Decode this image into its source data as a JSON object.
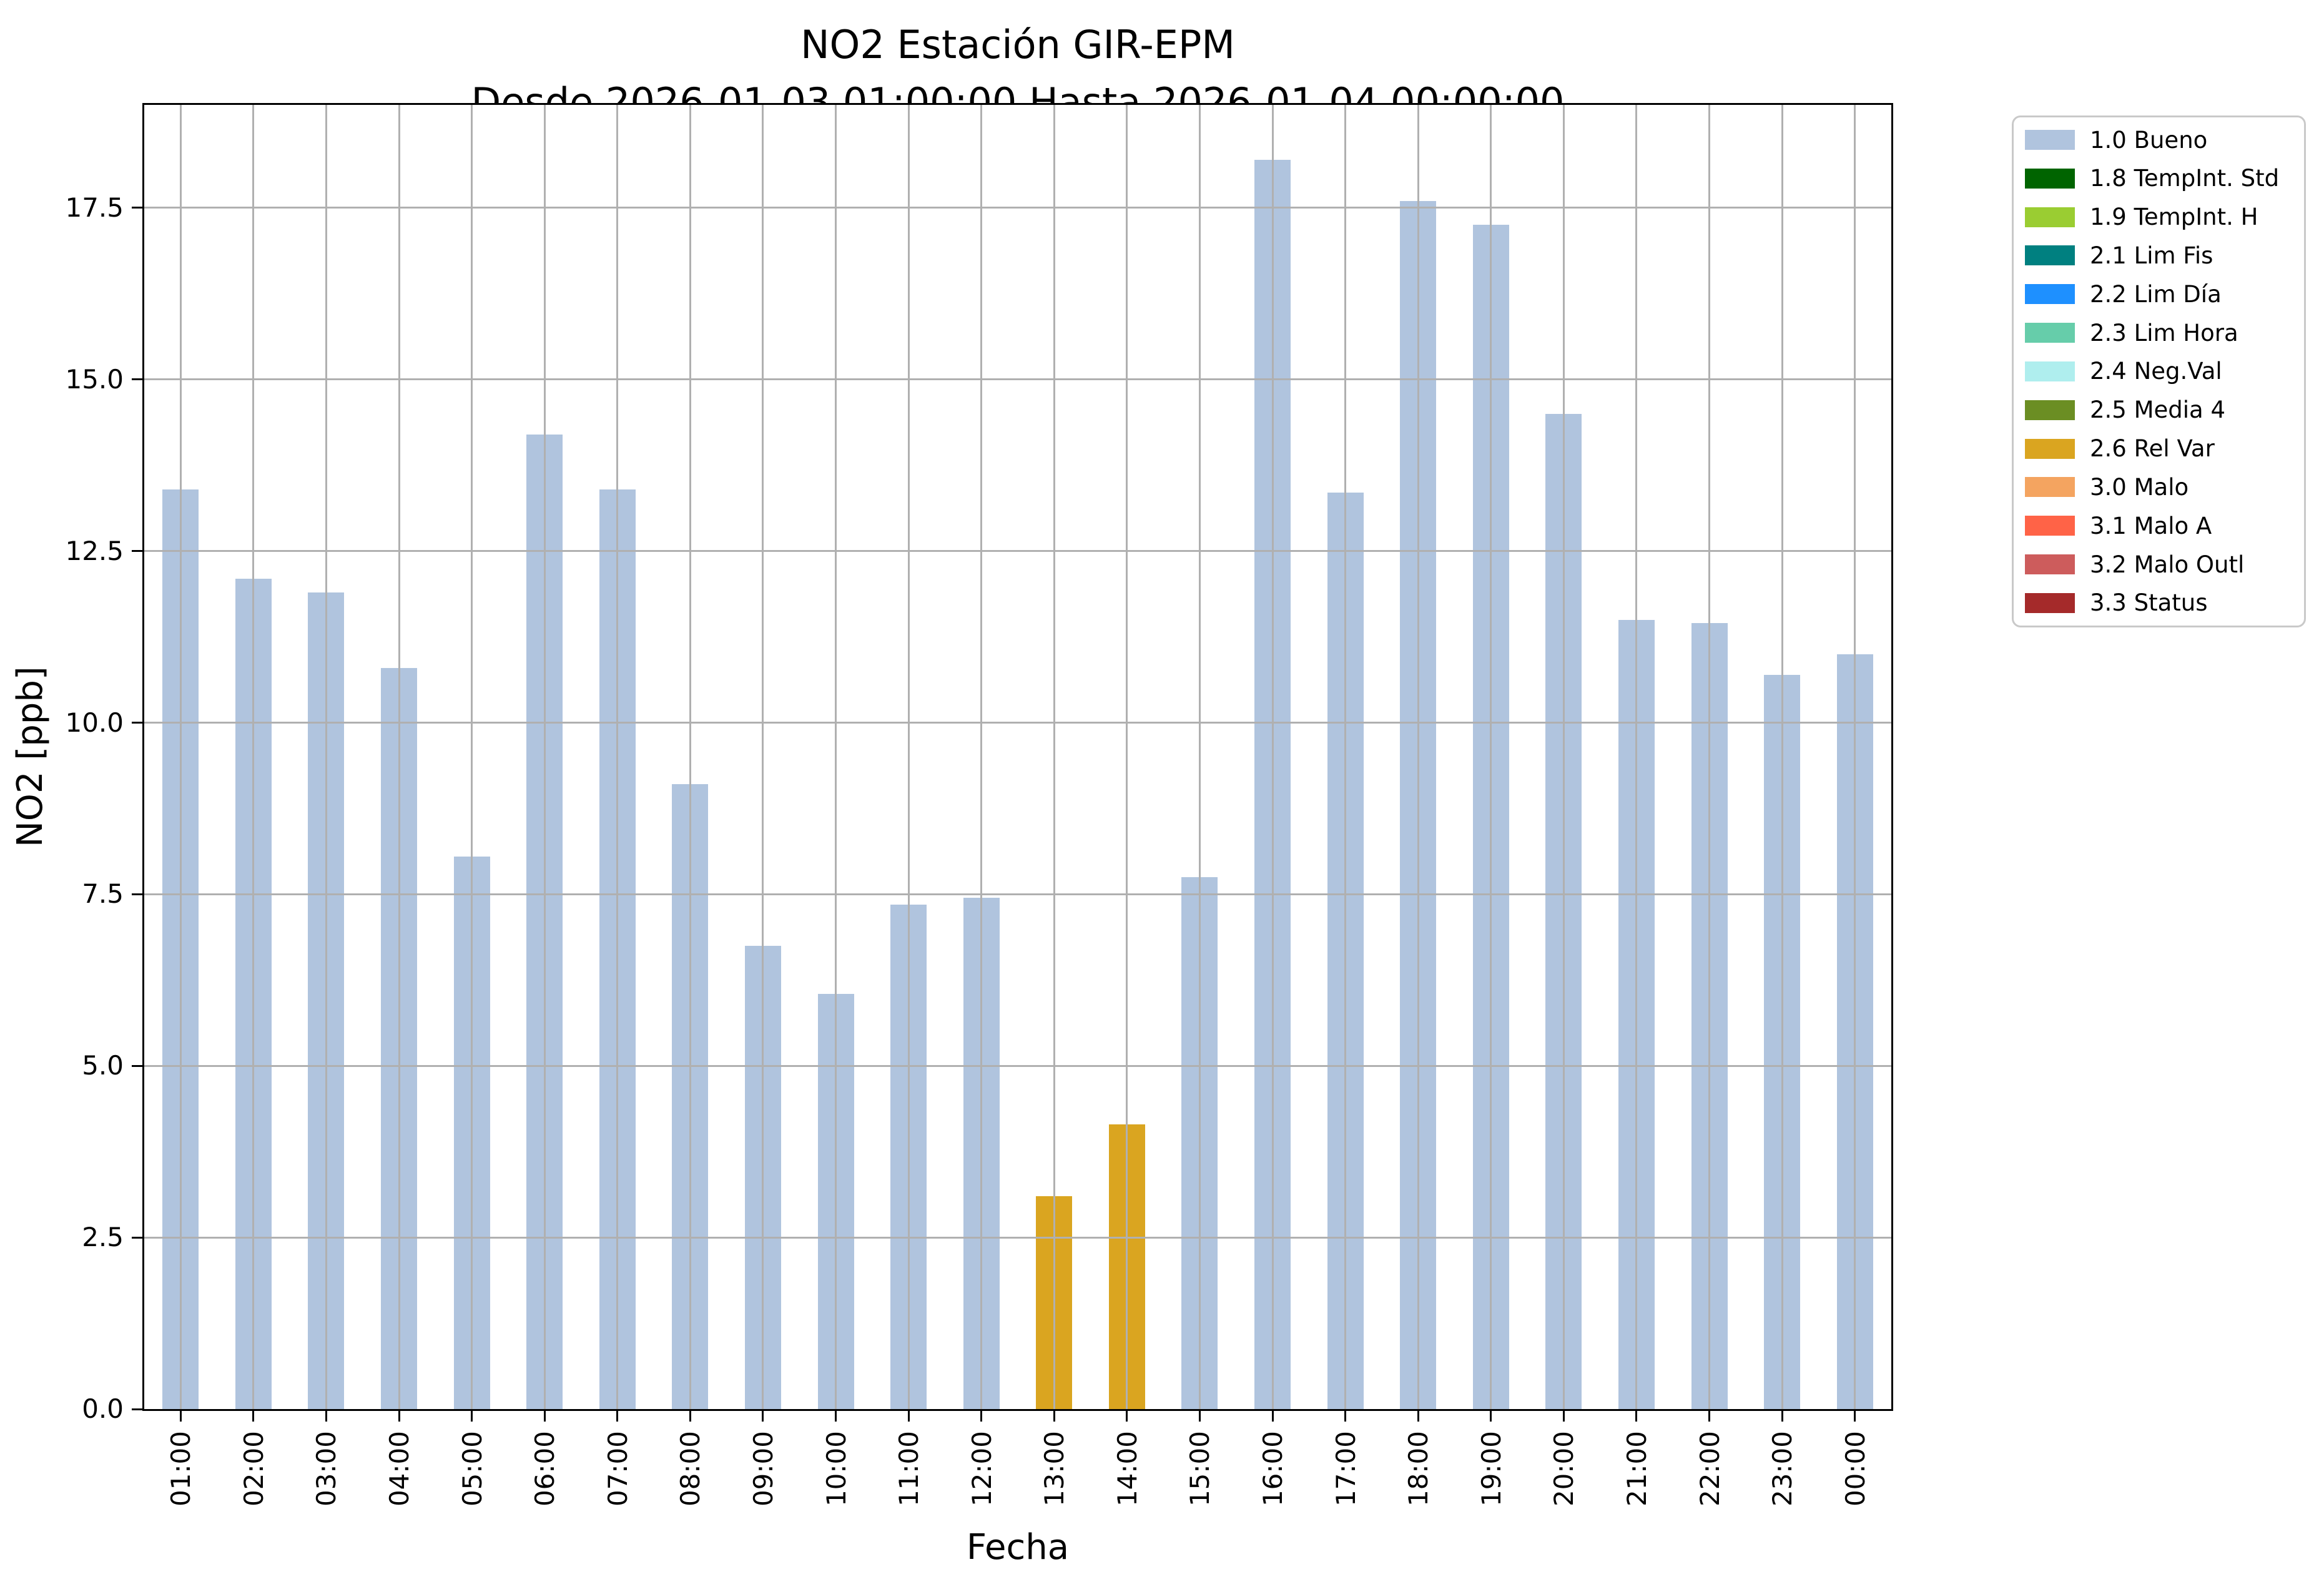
{
  "figure": {
    "title_line1": "NO2 Estación GIR-EPM",
    "title_line2": "Desde 2026-01-03 01:00:00 Hasta 2026-01-04 00:00:00"
  },
  "chart_data": {
    "type": "bar",
    "title": "NO2 Estación GIR-EPM",
    "subtitle": "Desde 2026-01-03 01:00:00 Hasta 2026-01-04 00:00:00",
    "xlabel": "Fecha",
    "ylabel": "NO2 [ppb]",
    "ylim": [
      0,
      19.0
    ],
    "yticks": [
      0.0,
      2.5,
      5.0,
      7.5,
      10.0,
      12.5,
      15.0,
      17.5
    ],
    "ytick_labels": [
      "0.0",
      "2.5",
      "5.0",
      "7.5",
      "10.0",
      "12.5",
      "15.0",
      "17.5"
    ],
    "grid": true,
    "legend_position": "outside-upper-right",
    "categories": [
      "01:00",
      "02:00",
      "03:00",
      "04:00",
      "05:00",
      "06:00",
      "07:00",
      "08:00",
      "09:00",
      "10:00",
      "11:00",
      "12:00",
      "13:00",
      "14:00",
      "15:00",
      "16:00",
      "17:00",
      "18:00",
      "19:00",
      "20:00",
      "21:00",
      "22:00",
      "23:00",
      "00:00"
    ],
    "values": [
      13.4,
      12.1,
      11.9,
      10.8,
      8.05,
      14.2,
      13.4,
      9.1,
      6.75,
      6.05,
      7.35,
      7.45,
      3.1,
      4.15,
      7.75,
      18.2,
      13.35,
      17.6,
      17.25,
      14.5,
      11.5,
      11.45,
      10.7,
      11.0
    ],
    "bar_status": [
      "1.0 Bueno",
      "1.0 Bueno",
      "1.0 Bueno",
      "1.0 Bueno",
      "1.0 Bueno",
      "1.0 Bueno",
      "1.0 Bueno",
      "1.0 Bueno",
      "1.0 Bueno",
      "1.0 Bueno",
      "1.0 Bueno",
      "1.0 Bueno",
      "2.6 Rel Var",
      "2.6 Rel Var",
      "1.0 Bueno",
      "1.0 Bueno",
      "1.0 Bueno",
      "1.0 Bueno",
      "1.0 Bueno",
      "1.0 Bueno",
      "1.0 Bueno",
      "1.0 Bueno",
      "1.0 Bueno",
      "1.0 Bueno"
    ],
    "status_colors": {
      "1.0 Bueno": "#b0c4de",
      "2.6 Rel Var": "#daa520"
    },
    "legend": [
      {
        "label": "1.0 Bueno",
        "color": "#b0c4de"
      },
      {
        "label": "1.8 TempInt. Std",
        "color": "#006400"
      },
      {
        "label": "1.9 TempInt. H",
        "color": "#9acd32"
      },
      {
        "label": "2.1 Lim Fis",
        "color": "#008080"
      },
      {
        "label": "2.2 Lim Día",
        "color": "#1e90ff"
      },
      {
        "label": "2.3 Lim Hora",
        "color": "#66cdaa"
      },
      {
        "label": "2.4 Neg.Val",
        "color": "#afeeee"
      },
      {
        "label": "2.5 Media 4",
        "color": "#6b8e23"
      },
      {
        "label": "2.6 Rel Var",
        "color": "#daa520"
      },
      {
        "label": "3.0 Malo",
        "color": "#f4a460"
      },
      {
        "label": "3.1 Malo A",
        "color": "#ff6347"
      },
      {
        "label": "3.2 Malo Outl",
        "color": "#cd5c5c"
      },
      {
        "label": "3.3 Status",
        "color": "#a52a2a"
      }
    ]
  },
  "colors": {
    "background": "#ffffff",
    "grid": "#b0b0b0",
    "spine": "#000000",
    "legend_border": "#c9c9c9",
    "text": "#000000"
  }
}
